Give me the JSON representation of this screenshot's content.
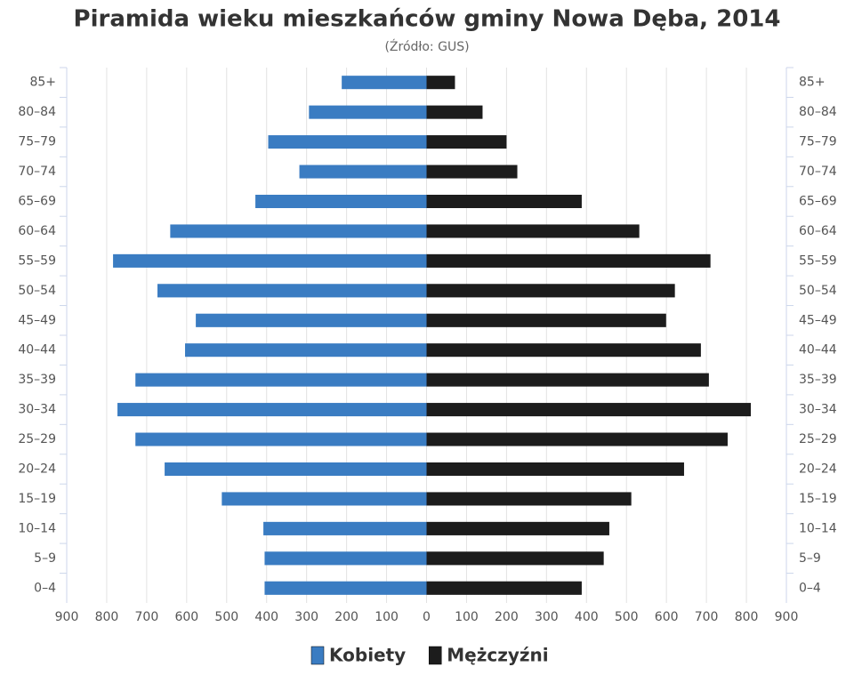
{
  "chart_data": {
    "type": "population-pyramid",
    "title": "Piramida wieku mieszkańców gminy Nowa Dęba, 2014",
    "subtitle": "(Źródło: GUS)",
    "categories": [
      "85+",
      "80–84",
      "75–79",
      "70–74",
      "65–69",
      "60–64",
      "55–59",
      "50–54",
      "45–49",
      "40–44",
      "35–39",
      "30–34",
      "25–29",
      "20–24",
      "15–19",
      "10–14",
      "5–9",
      "0–4"
    ],
    "series": [
      {
        "name": "Kobiety",
        "color": "#3a7cc2",
        "values": [
          -212,
          -294,
          -396,
          -318,
          -428,
          -641,
          -784,
          -673,
          -577,
          -604,
          -728,
          -773,
          -728,
          -655,
          -512,
          -408,
          -405,
          -405
        ]
      },
      {
        "name": "Mężczyźni",
        "color": "#1c1c1c",
        "values": [
          71,
          140,
          200,
          227,
          388,
          532,
          710,
          621,
          599,
          686,
          706,
          811,
          753,
          644,
          512,
          457,
          443,
          388
        ]
      }
    ],
    "xlim": [
      -900,
      900
    ],
    "xticks": [
      {
        "value": -900,
        "label": "900"
      },
      {
        "value": -800,
        "label": "800"
      },
      {
        "value": -700,
        "label": "700"
      },
      {
        "value": -600,
        "label": "600"
      },
      {
        "value": -500,
        "label": "500"
      },
      {
        "value": -400,
        "label": "400"
      },
      {
        "value": -300,
        "label": "300"
      },
      {
        "value": -200,
        "label": "200"
      },
      {
        "value": -100,
        "label": "100"
      },
      0,
      100,
      200,
      300,
      400,
      500,
      600,
      700,
      800,
      900
    ],
    "grid": true,
    "legend": "bottom"
  }
}
